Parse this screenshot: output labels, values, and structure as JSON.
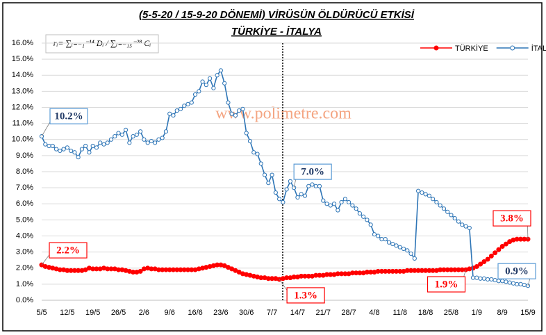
{
  "chart_data": {
    "type": "line",
    "title": "(5-5-20 / 15-9-20 DÖNEMİ) VİRÜSÜN ÖLDÜRÜCÜ ETKİSİ",
    "subtitle": "TÜRKİYE - İTALYA",
    "formula": "rᵢ= ∑ᵢ₌₋₁⁻¹⁴ Dᵢ / ∑ᵢ₌₋₁₅⁻²⁸ Cᵢ",
    "watermark": "www.polimetre.com",
    "legend": "top-right",
    "grid": true,
    "ylim": [
      0,
      16
    ],
    "yticks": [
      {
        "value": 0,
        "label": "0.0%"
      },
      {
        "value": 1,
        "label": "1.0%"
      },
      {
        "value": 2,
        "label": "2.0%"
      },
      {
        "value": 3,
        "label": "3.0%"
      },
      {
        "value": 4,
        "label": "4.0%"
      },
      {
        "value": 5,
        "label": "5.0%"
      },
      {
        "value": 6,
        "label": "6.0%"
      },
      {
        "value": 7,
        "label": "7.0%"
      },
      {
        "value": 8,
        "label": "8.0%"
      },
      {
        "value": 9,
        "label": "9.0%"
      },
      {
        "value": 10,
        "label": "10.0%"
      },
      {
        "value": 11,
        "label": "11.0%"
      },
      {
        "value": 12,
        "label": "12.0%"
      },
      {
        "value": 13,
        "label": "13.0%"
      },
      {
        "value": 14,
        "label": "14.0%"
      },
      {
        "value": 15,
        "label": "15.0%"
      },
      {
        "value": 16,
        "label": "16.0%"
      }
    ],
    "categories": [
      "5/5",
      null,
      null,
      null,
      null,
      null,
      null,
      "12/5",
      null,
      null,
      null,
      null,
      null,
      null,
      "19/5",
      null,
      null,
      null,
      null,
      null,
      null,
      "26/5",
      null,
      null,
      null,
      null,
      null,
      null,
      "2/6",
      null,
      null,
      null,
      null,
      null,
      null,
      "9/6",
      null,
      null,
      null,
      null,
      null,
      null,
      "16/6",
      null,
      null,
      null,
      null,
      null,
      null,
      "23/6",
      null,
      null,
      null,
      null,
      null,
      null,
      "30/6",
      null,
      null,
      null,
      null,
      null,
      null,
      "7/7",
      null,
      null,
      null,
      null,
      null,
      null,
      "14/7",
      null,
      null,
      null,
      null,
      null,
      null,
      "21/7",
      null,
      null,
      null,
      null,
      null,
      null,
      "28/7",
      null,
      null,
      null,
      null,
      null,
      null,
      "4/8",
      null,
      null,
      null,
      null,
      null,
      null,
      "11/8",
      null,
      null,
      null,
      null,
      null,
      null,
      "18/8",
      null,
      null,
      null,
      null,
      null,
      null,
      "25/8",
      null,
      null,
      null,
      null,
      null,
      null,
      "1/9",
      null,
      null,
      null,
      null,
      null,
      null,
      "8/9",
      null,
      null,
      null,
      null,
      null,
      null,
      "15/9"
    ],
    "series": [
      {
        "name": "TÜRKİYE",
        "color": "#ff0000",
        "marker": "filled",
        "values": [
          2.2,
          2.1,
          2.05,
          2.0,
          1.95,
          1.9,
          1.9,
          1.85,
          1.85,
          1.85,
          1.85,
          1.85,
          1.9,
          2.0,
          1.95,
          1.95,
          1.95,
          2.0,
          1.95,
          1.95,
          1.95,
          1.9,
          1.9,
          1.85,
          1.8,
          1.75,
          1.75,
          1.8,
          1.95,
          2.0,
          1.95,
          1.95,
          1.9,
          1.9,
          1.9,
          1.9,
          1.9,
          1.9,
          1.9,
          1.9,
          1.9,
          1.9,
          1.9,
          1.95,
          2.0,
          2.05,
          2.1,
          2.15,
          2.2,
          2.2,
          2.15,
          2.05,
          1.95,
          1.85,
          1.75,
          1.65,
          1.6,
          1.55,
          1.5,
          1.45,
          1.4,
          1.4,
          1.35,
          1.35,
          1.35,
          1.3,
          1.35,
          1.4,
          1.4,
          1.45,
          1.45,
          1.5,
          1.5,
          1.5,
          1.5,
          1.55,
          1.55,
          1.55,
          1.6,
          1.6,
          1.6,
          1.65,
          1.65,
          1.65,
          1.65,
          1.7,
          1.7,
          1.7,
          1.7,
          1.75,
          1.75,
          1.75,
          1.8,
          1.8,
          1.8,
          1.8,
          1.8,
          1.8,
          1.8,
          1.8,
          1.85,
          1.85,
          1.85,
          1.85,
          1.85,
          1.85,
          1.85,
          1.85,
          1.85,
          1.9,
          1.9,
          1.9,
          1.9,
          1.9,
          1.9,
          1.9,
          1.9,
          1.95,
          2.0,
          2.1,
          2.25,
          2.4,
          2.55,
          2.75,
          2.95,
          3.15,
          3.35,
          3.5,
          3.65,
          3.75,
          3.8,
          3.8,
          3.8,
          3.8
        ],
        "value_labels": [
          "2.2%",
          null,
          null,
          null,
          null,
          null,
          null,
          null,
          null,
          null,
          null,
          null,
          null,
          null,
          null,
          null,
          null,
          null,
          null,
          null,
          null,
          null,
          null,
          null,
          null,
          null,
          null,
          null,
          null,
          null,
          null,
          null,
          null,
          null,
          null,
          null,
          null,
          null,
          null,
          null,
          null,
          null,
          null,
          null,
          null,
          null,
          null,
          null,
          null,
          null,
          null,
          null,
          null,
          null,
          null,
          null,
          null,
          null,
          null,
          null,
          null,
          null,
          null,
          null,
          null,
          "1.3%",
          null,
          null,
          null,
          null,
          null,
          null,
          null,
          null,
          null,
          null,
          null,
          null,
          null,
          null,
          null,
          null,
          null,
          null,
          null,
          null,
          null,
          null,
          null,
          null,
          null,
          null,
          null,
          null,
          null,
          null,
          null,
          null,
          null,
          null,
          null,
          null,
          null,
          null,
          null,
          null,
          null,
          null,
          null,
          null,
          null,
          null,
          null,
          null,
          null,
          null,
          "1.9%",
          null,
          null,
          null,
          null,
          null,
          null,
          null,
          null,
          null,
          null,
          null,
          null,
          null,
          null,
          null,
          null,
          "3.8%"
        ]
      },
      {
        "name": "İTALYA",
        "color": "#2e75b6",
        "marker": "open",
        "values": [
          10.2,
          9.7,
          9.6,
          9.6,
          9.4,
          9.3,
          9.4,
          9.5,
          9.3,
          9.2,
          8.9,
          9.4,
          9.6,
          9.2,
          9.6,
          9.5,
          9.8,
          9.7,
          9.8,
          10.0,
          10.2,
          10.4,
          10.3,
          10.6,
          9.8,
          10.2,
          10.3,
          10.5,
          10.0,
          9.8,
          9.9,
          9.8,
          10.0,
          10.1,
          10.5,
          11.6,
          11.5,
          11.8,
          11.9,
          12.1,
          12.2,
          12.3,
          12.8,
          13.0,
          13.6,
          13.4,
          13.8,
          13.2,
          14.0,
          14.3,
          13.5,
          12.3,
          11.6,
          11.5,
          11.8,
          11.9,
          10.4,
          9.9,
          9.2,
          9.1,
          8.5,
          7.8,
          7.3,
          7.8,
          6.7,
          6.3,
          6.1,
          6.9,
          7.4,
          7.0,
          6.4,
          6.6,
          6.5,
          7.1,
          7.2,
          7.1,
          7.1,
          6.2,
          6.0,
          5.9,
          6.0,
          5.6,
          6.1,
          6.3,
          6.1,
          5.9,
          5.7,
          5.4,
          5.2,
          5.0,
          4.7,
          4.1,
          4.0,
          3.8,
          3.8,
          3.6,
          3.5,
          3.4,
          3.3,
          3.2,
          3.1,
          2.9,
          2.6,
          6.8,
          6.7,
          6.6,
          6.5,
          6.3,
          6.1,
          5.9,
          5.7,
          5.5,
          5.3,
          5.1,
          4.9,
          4.7,
          4.6,
          4.5,
          1.4,
          1.4,
          1.35,
          1.35,
          1.3,
          1.3,
          1.25,
          1.2,
          1.2,
          1.15,
          1.1,
          1.05,
          1.0,
          1.0,
          0.95,
          0.9
        ],
        "value_labels": [
          "10.2%",
          null,
          null,
          null,
          null,
          null,
          null,
          null,
          null,
          null,
          null,
          null,
          null,
          null,
          null,
          null,
          null,
          null,
          null,
          null,
          null,
          null,
          null,
          null,
          null,
          null,
          null,
          null,
          null,
          null,
          null,
          null,
          null,
          null,
          null,
          null,
          null,
          null,
          null,
          null,
          null,
          null,
          null,
          null,
          null,
          null,
          null,
          null,
          null,
          null,
          null,
          null,
          null,
          null,
          null,
          null,
          null,
          null,
          null,
          null,
          null,
          null,
          null,
          null,
          null,
          null,
          null,
          null,
          null,
          "7.0%",
          null,
          null,
          null,
          null,
          null,
          null,
          null,
          null,
          null,
          null,
          null,
          null,
          null,
          null,
          null,
          null,
          null,
          null,
          null,
          null,
          null,
          null,
          null,
          null,
          null,
          null,
          null,
          null,
          null,
          null,
          null,
          null,
          null,
          null,
          null,
          null,
          null,
          null,
          null,
          null,
          null,
          null,
          null,
          null,
          null,
          null,
          null,
          null,
          null,
          null,
          null,
          null,
          null,
          null,
          null,
          null,
          null,
          null,
          null,
          null,
          null,
          null,
          null,
          "0.9%"
        ]
      }
    ]
  }
}
